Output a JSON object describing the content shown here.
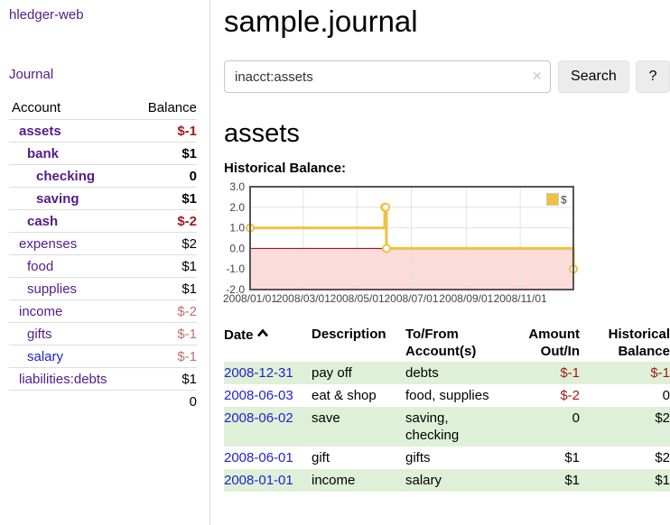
{
  "colors": {
    "link_purple": "#551a8b",
    "link_blue": "#2222cc",
    "negative_dark_red": "#9e1a1a",
    "negative_light_red": "#bd7070",
    "row_stripe_green": "#dff0d8",
    "chart_series_yellow": "#edc240",
    "chart_negative_fill": "#fcdbdb",
    "chart_zero_line": "#8b0000"
  },
  "sidebar": {
    "app_title": "hledger-web",
    "journal_link": "Journal",
    "accounts_table": {
      "headers": {
        "account": "Account",
        "balance": "Balance"
      },
      "rows": [
        {
          "name": "assets",
          "balance": "$-1"
        },
        {
          "name": "bank",
          "balance": "$1"
        },
        {
          "name": "checking",
          "balance": "0"
        },
        {
          "name": "saving",
          "balance": "$1"
        },
        {
          "name": "cash",
          "balance": "$-2"
        },
        {
          "name": "expenses",
          "balance": "$2"
        },
        {
          "name": "food",
          "balance": "$1"
        },
        {
          "name": "supplies",
          "balance": "$1"
        },
        {
          "name": "income",
          "balance": "$-2"
        },
        {
          "name": "gifts",
          "balance": "$-1"
        },
        {
          "name": "salary",
          "balance": "$-1"
        },
        {
          "name": "liabilities:debts",
          "balance": "$1"
        }
      ],
      "total": "0"
    }
  },
  "main": {
    "title": "sample.journal",
    "search": {
      "value": "inacct:assets",
      "clear_label": "✕",
      "button_label": "Search",
      "help_label": "?"
    },
    "account_heading": "assets",
    "chart_label": "Historical Balance:"
  },
  "chart_data": {
    "type": "line",
    "style": "step",
    "title": "Historical Balance:",
    "series": [
      {
        "name": "$",
        "color": "#edc240",
        "points": [
          {
            "x": "2008-01-01",
            "y": 1
          },
          {
            "x": "2008-06-01",
            "y": 2
          },
          {
            "x": "2008-06-02",
            "y": 2
          },
          {
            "x": "2008-06-03",
            "y": 0
          },
          {
            "x": "2008-12-31",
            "y": -1
          }
        ]
      }
    ],
    "xrange": [
      "2008-01-01",
      "2008-12-31"
    ],
    "ylim": [
      -2,
      3
    ],
    "yticks": [
      "3.0",
      "2.0",
      "1.0",
      "0.0",
      "-1.0",
      "-2.0"
    ],
    "xticks": [
      "2008/01/01",
      "2008/03/01",
      "2008/05/01",
      "2008/07/01",
      "2008/09/01",
      "2008/11/01"
    ],
    "grid": true,
    "negative_region_fill": "#fcdbdb",
    "zero_line_color": "#8b0000",
    "legend": {
      "label": "$",
      "position": "top-right"
    }
  },
  "register_table": {
    "headers": {
      "date": "Date",
      "description": "Description",
      "account": "To/From Account(s)",
      "amount": "Amount Out/In",
      "balance": "Historical Balance"
    },
    "rows": [
      {
        "date": "2008-12-31",
        "description": "pay off",
        "account": "debts",
        "amount": "$-1",
        "balance": "$-1"
      },
      {
        "date": "2008-06-03",
        "description": "eat & shop",
        "account": "food, supplies",
        "amount": "$-2",
        "balance": "0"
      },
      {
        "date": "2008-06-02",
        "description": "save",
        "account": "saving, checking",
        "amount": "0",
        "balance": "$2"
      },
      {
        "date": "2008-06-01",
        "description": "gift",
        "account": "gifts",
        "amount": "$1",
        "balance": "$2"
      },
      {
        "date": "2008-01-01",
        "description": "income",
        "account": "salary",
        "amount": "$1",
        "balance": "$1"
      }
    ]
  }
}
